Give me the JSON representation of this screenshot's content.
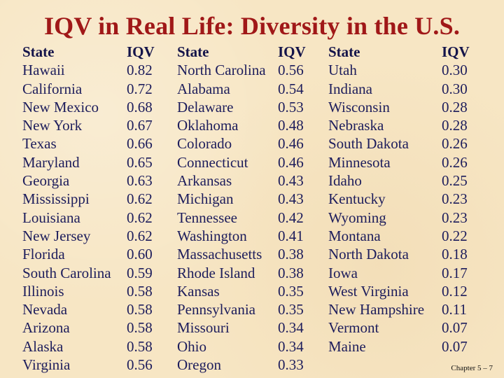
{
  "title": "IQV in Real Life: Diversity in the U.S.",
  "headers": {
    "state": "State",
    "iqv": "IQV"
  },
  "columns": [
    {
      "rows": [
        {
          "state": "Hawaii",
          "iqv": "0.82"
        },
        {
          "state": "California",
          "iqv": "0.72"
        },
        {
          "state": "New Mexico",
          "iqv": "0.68"
        },
        {
          "state": "New York",
          "iqv": "0.67"
        },
        {
          "state": "Texas",
          "iqv": "0.66"
        },
        {
          "state": "Maryland",
          "iqv": "0.65"
        },
        {
          "state": "Georgia",
          "iqv": "0.63"
        },
        {
          "state": "Mississippi",
          "iqv": "0.62"
        },
        {
          "state": "Louisiana",
          "iqv": "0.62"
        },
        {
          "state": "New Jersey",
          "iqv": "0.62"
        },
        {
          "state": "Florida",
          "iqv": "0.60"
        },
        {
          "state": "South Carolina",
          "iqv": "0.59"
        },
        {
          "state": "Illinois",
          "iqv": "0.58"
        },
        {
          "state": "Nevada",
          "iqv": "0.58"
        },
        {
          "state": "Arizona",
          "iqv": "0.58"
        },
        {
          "state": "Alaska",
          "iqv": "0.58"
        },
        {
          "state": "Virginia",
          "iqv": "0.56"
        }
      ]
    },
    {
      "rows": [
        {
          "state": "North Carolina",
          "iqv": "0.56"
        },
        {
          "state": "Alabama",
          "iqv": "0.54"
        },
        {
          "state": "Delaware",
          "iqv": "0.53"
        },
        {
          "state": "Oklahoma",
          "iqv": "0.48"
        },
        {
          "state": "Colorado",
          "iqv": "0.46"
        },
        {
          "state": "Connecticut",
          "iqv": "0.46"
        },
        {
          "state": "Arkansas",
          "iqv": "0.43"
        },
        {
          "state": "Michigan",
          "iqv": "0.43"
        },
        {
          "state": "Tennessee",
          "iqv": "0.42"
        },
        {
          "state": "Washington",
          "iqv": "0.41"
        },
        {
          "state": "Massachusetts",
          "iqv": "0.38"
        },
        {
          "state": "Rhode Island",
          "iqv": "0.38"
        },
        {
          "state": "Kansas",
          "iqv": "0.35"
        },
        {
          "state": "Pennsylvania",
          "iqv": "0.35"
        },
        {
          "state": "Missouri",
          "iqv": "0.34"
        },
        {
          "state": "Ohio",
          "iqv": "0.34"
        },
        {
          "state": "Oregon",
          "iqv": "0.33"
        }
      ]
    },
    {
      "rows": [
        {
          "state": "Utah",
          "iqv": "0.30"
        },
        {
          "state": "Indiana",
          "iqv": "0.30"
        },
        {
          "state": "Wisconsin",
          "iqv": "0.28"
        },
        {
          "state": "Nebraska",
          "iqv": "0.28"
        },
        {
          "state": "South Dakota",
          "iqv": "0.26"
        },
        {
          "state": "Minnesota",
          "iqv": "0.26"
        },
        {
          "state": "Idaho",
          "iqv": "0.25"
        },
        {
          "state": "Kentucky",
          "iqv": "0.23"
        },
        {
          "state": "Wyoming",
          "iqv": "0.23"
        },
        {
          "state": "Montana",
          "iqv": "0.22"
        },
        {
          "state": "North Dakota",
          "iqv": "0.18"
        },
        {
          "state": "Iowa",
          "iqv": "0.17"
        },
        {
          "state": "West Virginia",
          "iqv": "0.12"
        },
        {
          "state": "New Hampshire",
          "iqv": "0.11"
        },
        {
          "state": "Vermont",
          "iqv": "0.07"
        },
        {
          "state": "Maine",
          "iqv": "0.07"
        }
      ]
    }
  ],
  "footer": "Chapter 5 – 7"
}
